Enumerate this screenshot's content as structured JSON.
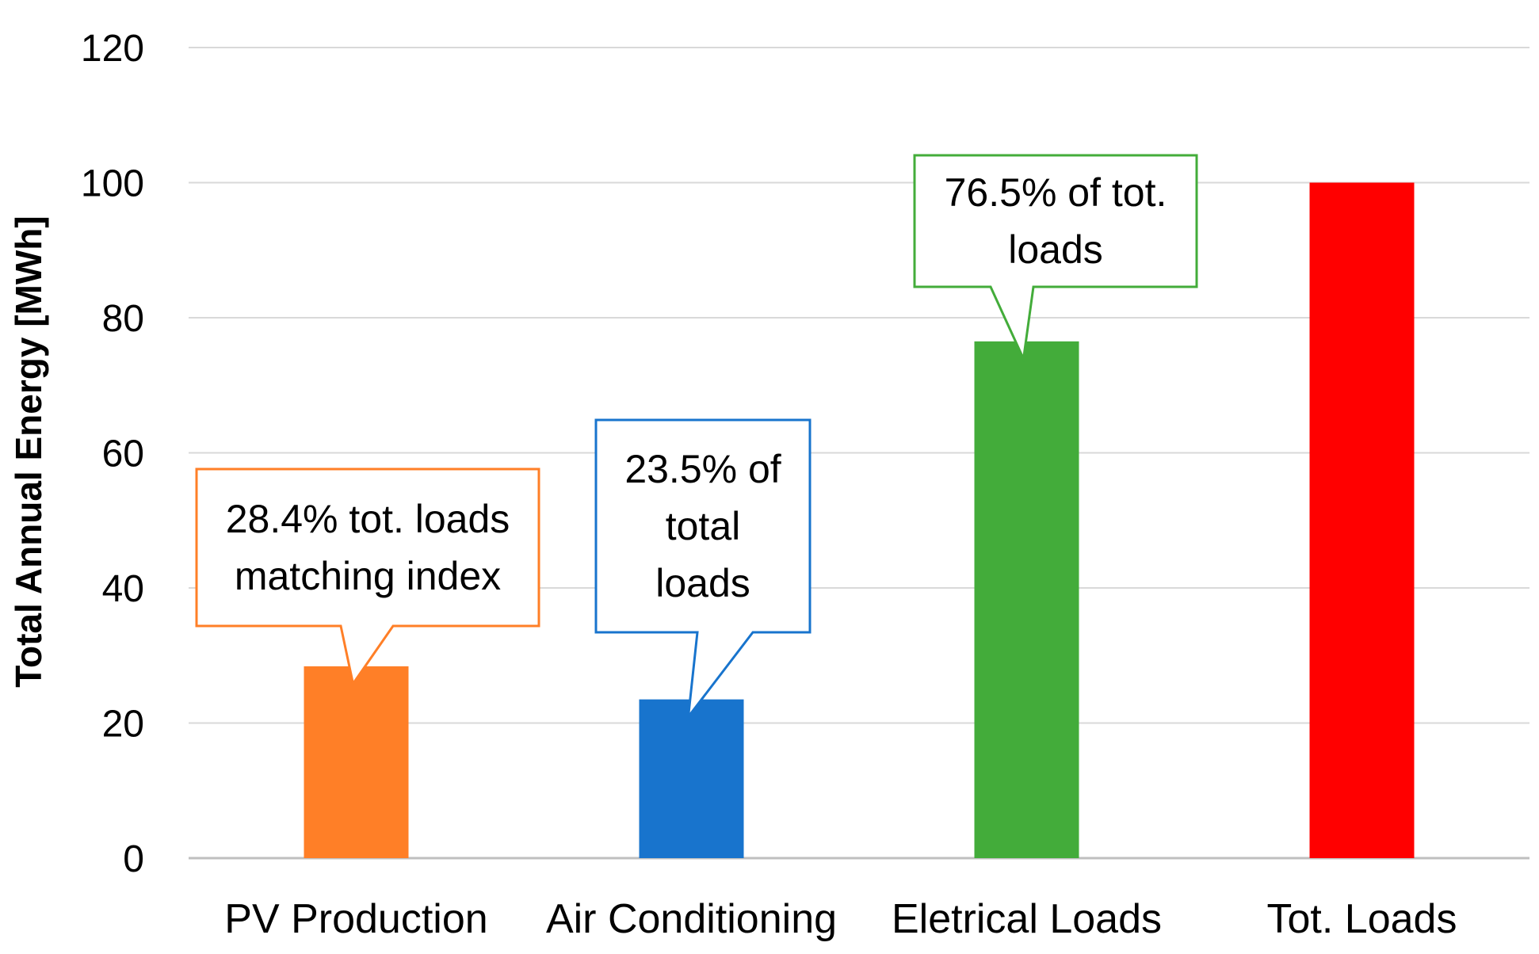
{
  "chart_data": {
    "type": "bar",
    "title": "",
    "xlabel": "",
    "ylabel": "Total Annual Energy [MWh]",
    "ylim": [
      0,
      120
    ],
    "yticks": [
      0,
      20,
      40,
      60,
      80,
      100,
      120
    ],
    "grid": true,
    "categories": [
      "PV Production",
      "Air Conditioning",
      "Eletrical Loads",
      "Tot. Loads"
    ],
    "values": [
      28.4,
      23.5,
      76.5,
      100
    ],
    "colors": [
      "#FF7F27",
      "#1874CD",
      "#43AC3A",
      "#FF0000"
    ],
    "callout_colors": [
      "#FF7F27",
      "#1874CD",
      "#43AC3A"
    ],
    "callouts": [
      {
        "category": "PV Production",
        "lines": [
          "28.4% tot. loads",
          "matching index"
        ]
      },
      {
        "category": "Air Conditioning",
        "lines": [
          "23.5% of",
          "total",
          "loads"
        ]
      },
      {
        "category": "Eletrical Loads",
        "lines": [
          "76.5% of tot.",
          "loads"
        ]
      }
    ]
  }
}
